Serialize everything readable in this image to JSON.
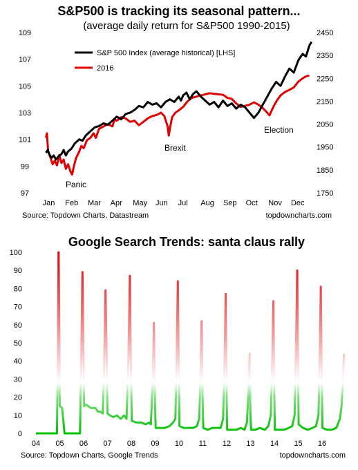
{
  "chart_data": [
    {
      "type": "line",
      "title": "S&P500 is tracking its seasonal pattern...",
      "subtitle": "(average daily return for S&P500 1990-2015)",
      "x_categories": [
        "Jan",
        "Feb",
        "Mar",
        "Apr",
        "May",
        "Jun",
        "Jul",
        "Aug",
        "Sep",
        "Oct",
        "Nov",
        "Dec"
      ],
      "y_left": {
        "ticks": [
          97,
          99,
          101,
          103,
          105,
          107,
          109
        ],
        "ylim": [
          97,
          109
        ]
      },
      "y_right": {
        "ticks": [
          1750,
          1850,
          1950,
          2050,
          2150,
          2250,
          2350,
          2450
        ],
        "ylim": [
          1750,
          2450
        ]
      },
      "series": [
        {
          "name": "S&P 500 Index (average historical) [LHS]",
          "axis": "left",
          "color": "#000000",
          "points": [
            [
              0.0,
              100.0
            ],
            [
              0.08,
              100.2
            ],
            [
              0.15,
              99.9
            ],
            [
              0.25,
              99.6
            ],
            [
              0.35,
              99.8
            ],
            [
              0.45,
              99.5
            ],
            [
              0.55,
              99.7
            ],
            [
              0.7,
              99.9
            ],
            [
              0.8,
              100.2
            ],
            [
              0.9,
              99.8
            ],
            [
              1.0,
              100.1
            ],
            [
              1.15,
              100.3
            ],
            [
              1.3,
              100.7
            ],
            [
              1.5,
              101.0
            ],
            [
              1.65,
              100.9
            ],
            [
              1.8,
              101.3
            ],
            [
              2.0,
              101.6
            ],
            [
              2.2,
              101.9
            ],
            [
              2.4,
              102.0
            ],
            [
              2.6,
              102.2
            ],
            [
              2.8,
              102.1
            ],
            [
              3.0,
              102.4
            ],
            [
              3.2,
              102.7
            ],
            [
              3.4,
              102.5
            ],
            [
              3.6,
              102.9
            ],
            [
              3.8,
              103.0
            ],
            [
              4.0,
              103.2
            ],
            [
              4.2,
              103.5
            ],
            [
              4.4,
              103.4
            ],
            [
              4.6,
              103.8
            ],
            [
              4.8,
              103.6
            ],
            [
              5.0,
              103.7
            ],
            [
              5.2,
              103.4
            ],
            [
              5.4,
              103.8
            ],
            [
              5.6,
              104.0
            ],
            [
              5.8,
              103.8
            ],
            [
              6.0,
              104.2
            ],
            [
              6.1,
              103.9
            ],
            [
              6.2,
              104.3
            ],
            [
              6.35,
              104.5
            ],
            [
              6.5,
              104.0
            ],
            [
              6.65,
              104.4
            ],
            [
              6.8,
              104.6
            ],
            [
              7.0,
              104.2
            ],
            [
              7.2,
              103.9
            ],
            [
              7.4,
              103.6
            ],
            [
              7.6,
              103.8
            ],
            [
              7.8,
              103.4
            ],
            [
              8.0,
              103.9
            ],
            [
              8.2,
              103.5
            ],
            [
              8.4,
              103.7
            ],
            [
              8.6,
              103.3
            ],
            [
              8.8,
              103.6
            ],
            [
              9.0,
              103.4
            ],
            [
              9.2,
              103.0
            ],
            [
              9.4,
              102.6
            ],
            [
              9.6,
              103.0
            ],
            [
              9.8,
              103.6
            ],
            [
              10.0,
              104.2
            ],
            [
              10.2,
              104.8
            ],
            [
              10.4,
              105.3
            ],
            [
              10.6,
              105.0
            ],
            [
              10.8,
              105.7
            ],
            [
              11.0,
              106.3
            ],
            [
              11.2,
              106.0
            ],
            [
              11.4,
              106.9
            ],
            [
              11.6,
              107.4
            ],
            [
              11.75,
              107.2
            ],
            [
              11.9,
              108.0
            ],
            [
              12.0,
              108.3
            ]
          ]
        },
        {
          "name": "2016",
          "axis": "right",
          "color": "#e00000",
          "points": [
            [
              0.0,
              1990
            ],
            [
              0.04,
              2010
            ],
            [
              0.1,
              1930
            ],
            [
              0.2,
              1905
            ],
            [
              0.3,
              1875
            ],
            [
              0.4,
              1890
            ],
            [
              0.5,
              1870
            ],
            [
              0.6,
              1915
            ],
            [
              0.7,
              1880
            ],
            [
              0.8,
              1895
            ],
            [
              0.9,
              1855
            ],
            [
              1.0,
              1875
            ],
            [
              1.1,
              1845
            ],
            [
              1.18,
              1830
            ],
            [
              1.25,
              1860
            ],
            [
              1.35,
              1900
            ],
            [
              1.5,
              1930
            ],
            [
              1.6,
              1955
            ],
            [
              1.7,
              1945
            ],
            [
              1.85,
              1980
            ],
            [
              2.0,
              1990
            ],
            [
              2.15,
              2010
            ],
            [
              2.25,
              1990
            ],
            [
              2.4,
              2030
            ],
            [
              2.6,
              2040
            ],
            [
              2.8,
              2050
            ],
            [
              3.0,
              2040
            ],
            [
              3.1,
              2070
            ],
            [
              3.2,
              2065
            ],
            [
              3.4,
              2080
            ],
            [
              3.6,
              2075
            ],
            [
              3.8,
              2060
            ],
            [
              4.0,
              2065
            ],
            [
              4.2,
              2045
            ],
            [
              4.4,
              2060
            ],
            [
              4.6,
              2075
            ],
            [
              4.8,
              2085
            ],
            [
              5.0,
              2090
            ],
            [
              5.2,
              2100
            ],
            [
              5.35,
              2085
            ],
            [
              5.5,
              2040
            ],
            [
              5.55,
              2000
            ],
            [
              5.6,
              2030
            ],
            [
              5.7,
              2080
            ],
            [
              5.85,
              2100
            ],
            [
              6.0,
              2110
            ],
            [
              6.2,
              2125
            ],
            [
              6.4,
              2150
            ],
            [
              6.6,
              2165
            ],
            [
              6.8,
              2170
            ],
            [
              7.0,
              2175
            ],
            [
              7.2,
              2180
            ],
            [
              7.4,
              2185
            ],
            [
              7.6,
              2182
            ],
            [
              7.8,
              2180
            ],
            [
              8.0,
              2178
            ],
            [
              8.2,
              2165
            ],
            [
              8.4,
              2160
            ],
            [
              8.6,
              2140
            ],
            [
              8.8,
              2125
            ],
            [
              9.0,
              2130
            ],
            [
              9.2,
              2135
            ],
            [
              9.4,
              2145
            ],
            [
              9.6,
              2135
            ],
            [
              9.8,
              2120
            ],
            [
              10.0,
              2100
            ],
            [
              10.1,
              2088
            ],
            [
              10.2,
              2110
            ],
            [
              10.3,
              2130
            ],
            [
              10.45,
              2155
            ],
            [
              10.6,
              2175
            ],
            [
              10.8,
              2190
            ],
            [
              11.0,
              2200
            ],
            [
              11.2,
              2210
            ],
            [
              11.4,
              2235
            ],
            [
              11.6,
              2250
            ],
            [
              11.75,
              2258
            ],
            [
              11.9,
              2262
            ]
          ]
        }
      ],
      "annotations": [
        "Panic",
        "Brexit",
        "Election"
      ],
      "source_left": "Source: Topdown Charts, Datastream",
      "source_right": "topdowncharts.com"
    },
    {
      "type": "line",
      "title": "Google Search Trends: santa claus rally",
      "x_categories": [
        "04",
        "05",
        "06",
        "07",
        "08",
        "09",
        "10",
        "11",
        "12",
        "13",
        "14",
        "15",
        "16"
      ],
      "y_ticks": [
        0,
        10,
        20,
        30,
        40,
        50,
        60,
        70,
        80,
        90,
        100
      ],
      "ylim": [
        0,
        100
      ],
      "peaks": [
        {
          "year": "05",
          "value": 100
        },
        {
          "year": "06",
          "value": 89
        },
        {
          "year": "07",
          "value": 79
        },
        {
          "year": "08",
          "value": 87
        },
        {
          "year": "09",
          "value": 61
        },
        {
          "year": "10",
          "value": 84
        },
        {
          "year": "11",
          "value": 62
        },
        {
          "year": "12",
          "value": 77
        },
        {
          "year": "13",
          "value": 44
        },
        {
          "year": "14",
          "value": 73
        },
        {
          "year": "15",
          "value": 90
        },
        {
          "year": "16",
          "value": 81
        },
        {
          "year": "17",
          "value": 44
        }
      ],
      "points": [
        [
          0.0,
          0
        ],
        [
          0.4,
          0
        ],
        [
          0.8,
          0
        ],
        [
          0.88,
          0
        ],
        [
          0.92,
          40
        ],
        [
          0.95,
          100
        ],
        [
          0.98,
          60
        ],
        [
          1.0,
          15
        ],
        [
          1.1,
          14
        ],
        [
          1.2,
          0
        ],
        [
          1.3,
          0
        ],
        [
          1.45,
          0
        ],
        [
          1.6,
          0
        ],
        [
          1.75,
          0
        ],
        [
          1.85,
          0
        ],
        [
          1.9,
          40
        ],
        [
          1.95,
          89
        ],
        [
          1.99,
          50
        ],
        [
          2.02,
          15
        ],
        [
          2.1,
          16
        ],
        [
          2.3,
          14
        ],
        [
          2.5,
          14
        ],
        [
          2.6,
          12
        ],
        [
          2.7,
          12
        ],
        [
          2.8,
          11
        ],
        [
          2.85,
          30
        ],
        [
          2.92,
          79
        ],
        [
          2.97,
          40
        ],
        [
          3.0,
          11
        ],
        [
          3.1,
          10
        ],
        [
          3.25,
          9
        ],
        [
          3.4,
          10
        ],
        [
          3.55,
          8
        ],
        [
          3.7,
          10
        ],
        [
          3.8,
          8
        ],
        [
          3.88,
          40
        ],
        [
          3.94,
          87
        ],
        [
          3.98,
          40
        ],
        [
          4.02,
          7
        ],
        [
          4.2,
          6
        ],
        [
          4.4,
          6
        ],
        [
          4.6,
          5
        ],
        [
          4.75,
          6
        ],
        [
          4.82,
          5
        ],
        [
          4.9,
          30
        ],
        [
          4.95,
          61
        ],
        [
          4.99,
          20
        ],
        [
          5.02,
          3
        ],
        [
          5.2,
          3
        ],
        [
          5.4,
          3
        ],
        [
          5.6,
          4
        ],
        [
          5.75,
          6
        ],
        [
          5.85,
          8
        ],
        [
          5.9,
          40
        ],
        [
          5.95,
          84
        ],
        [
          5.99,
          40
        ],
        [
          6.02,
          4
        ],
        [
          6.2,
          3
        ],
        [
          6.4,
          3
        ],
        [
          6.6,
          3
        ],
        [
          6.75,
          4
        ],
        [
          6.85,
          8
        ],
        [
          6.9,
          30
        ],
        [
          6.95,
          62
        ],
        [
          6.99,
          20
        ],
        [
          7.02,
          3
        ],
        [
          7.2,
          2
        ],
        [
          7.4,
          3
        ],
        [
          7.6,
          3
        ],
        [
          7.75,
          3
        ],
        [
          7.85,
          8
        ],
        [
          7.91,
          40
        ],
        [
          7.96,
          77
        ],
        [
          7.99,
          30
        ],
        [
          8.02,
          2
        ],
        [
          8.2,
          2
        ],
        [
          8.4,
          2
        ],
        [
          8.6,
          3
        ],
        [
          8.75,
          2
        ],
        [
          8.85,
          6
        ],
        [
          8.92,
          25
        ],
        [
          8.96,
          44
        ],
        [
          8.99,
          15
        ],
        [
          9.02,
          2
        ],
        [
          9.2,
          2
        ],
        [
          9.4,
          3
        ],
        [
          9.6,
          2
        ],
        [
          9.75,
          4
        ],
        [
          9.85,
          10
        ],
        [
          9.91,
          40
        ],
        [
          9.96,
          73
        ],
        [
          9.99,
          30
        ],
        [
          10.02,
          2
        ],
        [
          10.2,
          2
        ],
        [
          10.4,
          2
        ],
        [
          10.6,
          3
        ],
        [
          10.75,
          4
        ],
        [
          10.85,
          10
        ],
        [
          10.91,
          50
        ],
        [
          10.96,
          90
        ],
        [
          10.99,
          40
        ],
        [
          11.02,
          5
        ],
        [
          11.2,
          3
        ],
        [
          11.4,
          2
        ],
        [
          11.6,
          3
        ],
        [
          11.75,
          4
        ],
        [
          11.85,
          10
        ],
        [
          11.9,
          40
        ],
        [
          11.95,
          81
        ],
        [
          11.99,
          30
        ],
        [
          12.02,
          3
        ],
        [
          12.2,
          2
        ],
        [
          12.4,
          2
        ],
        [
          12.6,
          3
        ],
        [
          12.75,
          8
        ],
        [
          12.82,
          15
        ],
        [
          12.88,
          30
        ],
        [
          12.92,
          44
        ]
      ],
      "color_high": "#e00000",
      "color_mid": "#ffffff",
      "color_low": "#00c000",
      "source_left": "Source: Topdown Charts, Google Trends",
      "source_right": "topdowncharts.com"
    }
  ]
}
